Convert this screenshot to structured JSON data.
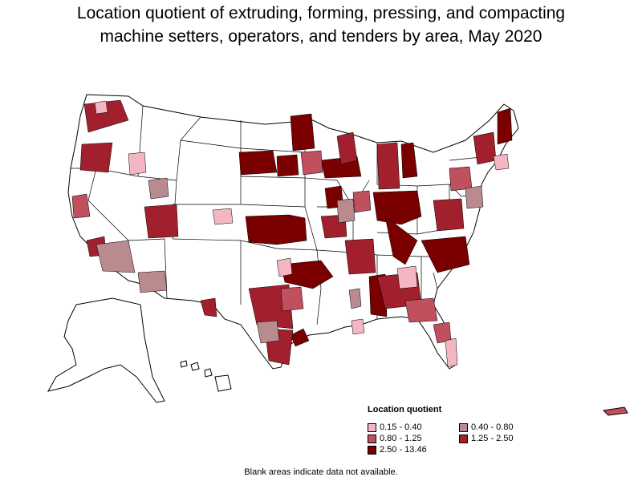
{
  "title": {
    "line1": "Location quotient of extruding, forming, pressing, and compacting",
    "line2": "machine setters, operators, and tenders by area, May 2020"
  },
  "legend": {
    "title": "Location quotient",
    "items": [
      {
        "label": "0.15 - 0.40",
        "color": "#f4b6c2"
      },
      {
        "label": "0.40 - 0.80",
        "color": "#b98b8f"
      },
      {
        "label": "0.80 - 1.25",
        "color": "#c0505e"
      },
      {
        "label": "1.25 - 2.50",
        "color": "#a2202e"
      },
      {
        "label": "2.50 - 13.46",
        "color": "#7a0000"
      }
    ]
  },
  "footnote": "Blank areas indicate data not available.",
  "colors": {
    "background": "#ffffff",
    "border": "#000000",
    "no_data": "#ffffff"
  }
}
